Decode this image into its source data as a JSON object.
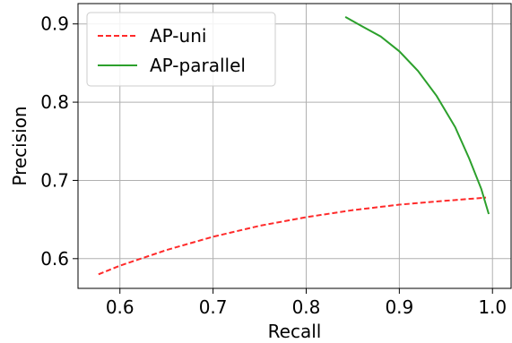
{
  "chart_data": {
    "type": "line",
    "title": "",
    "xlabel": "Recall",
    "ylabel": "Precision",
    "xlim": [
      0.555,
      1.02
    ],
    "ylim": [
      0.562,
      0.926
    ],
    "xticks": [
      0.6,
      0.7,
      0.8,
      0.9,
      1.0
    ],
    "xtick_labels": [
      "0.6",
      "0.7",
      "0.8",
      "0.9",
      "1.0"
    ],
    "yticks": [
      0.6,
      0.7,
      0.8,
      0.9
    ],
    "ytick_labels": [
      "0.6",
      "0.7",
      "0.8",
      "0.9"
    ],
    "grid": true,
    "legend_position": "top-left",
    "series": [
      {
        "name": "AP-uni",
        "color": "#ff2a2a",
        "style": "dashed",
        "points": [
          [
            0.577,
            0.58
          ],
          [
            0.6,
            0.591
          ],
          [
            0.65,
            0.611
          ],
          [
            0.7,
            0.628
          ],
          [
            0.75,
            0.642
          ],
          [
            0.8,
            0.653
          ],
          [
            0.85,
            0.662
          ],
          [
            0.9,
            0.669
          ],
          [
            0.95,
            0.674
          ],
          [
            0.993,
            0.678
          ]
        ]
      },
      {
        "name": "AP-parallel",
        "color": "#2ca02c",
        "style": "solid",
        "points": [
          [
            0.842,
            0.909
          ],
          [
            0.86,
            0.897
          ],
          [
            0.88,
            0.884
          ],
          [
            0.9,
            0.865
          ],
          [
            0.92,
            0.84
          ],
          [
            0.94,
            0.808
          ],
          [
            0.96,
            0.768
          ],
          [
            0.975,
            0.728
          ],
          [
            0.988,
            0.689
          ],
          [
            0.996,
            0.657
          ]
        ]
      }
    ]
  }
}
